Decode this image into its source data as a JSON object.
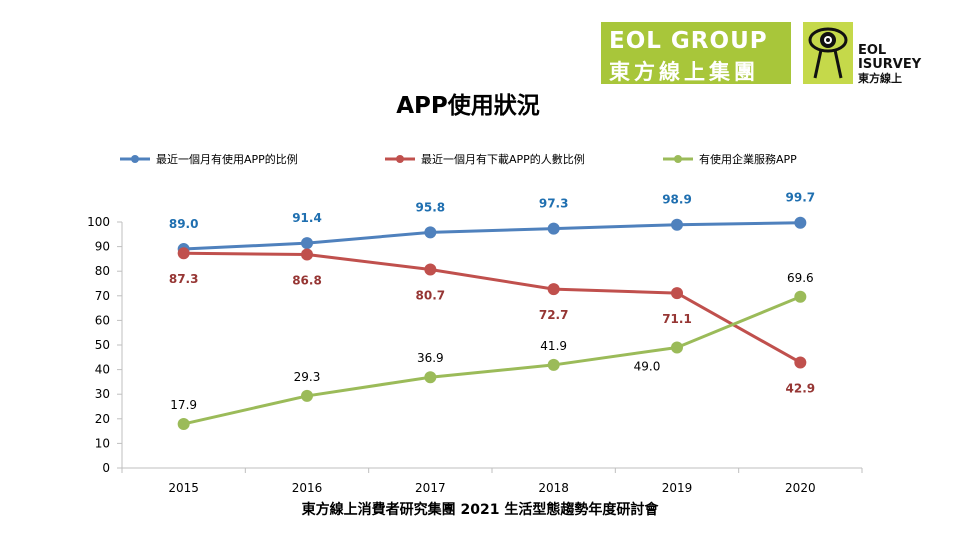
{
  "logos": {
    "eol_line1": "EOL GROUP",
    "eol_line2": "東方線上集團",
    "survey_line1": "EOL",
    "survey_line2": "ISURVEY",
    "survey_line3": "東方線上"
  },
  "footer": "東方線上消費者研究集團 2021 生活型態趨勢年度研討會",
  "chart_data": {
    "type": "line",
    "title": "APP使用狀況",
    "categories": [
      "2015",
      "2016",
      "2017",
      "2018",
      "2019",
      "2020"
    ],
    "ylim": [
      0,
      100
    ],
    "yticks": [
      "0",
      "10",
      "20",
      "30",
      "40",
      "50",
      "60",
      "70",
      "80",
      "90",
      "100"
    ],
    "grid": false,
    "legend": "top",
    "series": [
      {
        "name": "最近一個月有使用APP的比例",
        "color": "#4f81bd",
        "label_color": "#1f6fb0",
        "values": [
          89.0,
          91.4,
          95.8,
          97.3,
          98.9,
          99.7
        ],
        "labels": [
          "89.0",
          "91.4",
          "95.8",
          "97.3",
          "98.9",
          "99.7"
        ]
      },
      {
        "name": "最近一個月有下載APP的人數比例",
        "color": "#c0504d",
        "label_color": "#963634",
        "values": [
          87.3,
          86.8,
          80.7,
          72.7,
          71.1,
          42.9
        ],
        "labels": [
          "87.3",
          "86.8",
          "80.7",
          "72.7",
          "71.1",
          "42.9"
        ]
      },
      {
        "name": "有使用企業服務APP",
        "color": "#9bbb59",
        "label_color": "#000000",
        "values": [
          17.9,
          29.3,
          36.9,
          41.9,
          49.0,
          69.6
        ],
        "labels": [
          "17.9",
          "29.3",
          "36.9",
          "41.9",
          "49.0",
          "69.6"
        ]
      }
    ]
  }
}
